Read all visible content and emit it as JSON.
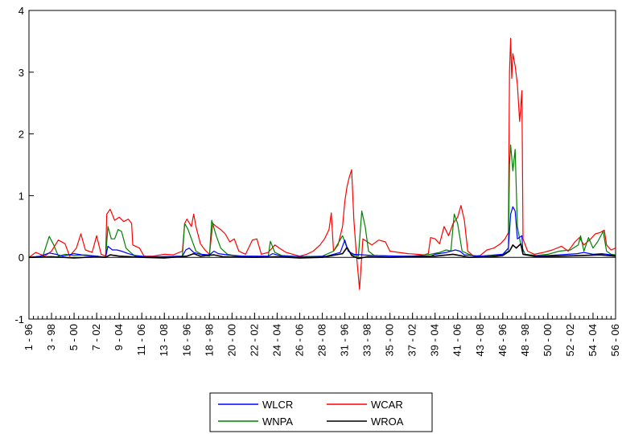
{
  "chart_data": {
    "type": "line",
    "title": "",
    "xlabel": "",
    "ylabel": "",
    "ylim": [
      -1,
      4
    ],
    "yticks": [
      -1,
      0,
      1,
      2,
      3,
      4
    ],
    "grid": false,
    "legend_position": "bottom-center",
    "x_tick_labels": [
      "1 - 96",
      "3 - 98",
      "5 - 00",
      "7 - 02",
      "9 - 04",
      "11 - 06",
      "13 - 08",
      "16 - 96",
      "18 - 98",
      "20 - 00",
      "22 - 02",
      "24 - 04",
      "26 - 06",
      "28 - 08",
      "31 - 96",
      "33 - 98",
      "35 - 00",
      "37 - 02",
      "39 - 04",
      "41 - 06",
      "43 - 08",
      "46 - 96",
      "48 - 98",
      "50 - 00",
      "52 - 02",
      "54 - 04",
      "56 - 06"
    ],
    "x_range": [
      0,
      26
    ],
    "series": [
      {
        "name": "WCAR",
        "color": "#ff0000",
        "points": [
          [
            0,
            0
          ],
          [
            0.3,
            0.08
          ],
          [
            0.7,
            0.02
          ],
          [
            1.0,
            0.1
          ],
          [
            1.3,
            0.28
          ],
          [
            1.6,
            0.22
          ],
          [
            1.8,
            0.02
          ],
          [
            2.1,
            0.15
          ],
          [
            2.3,
            0.38
          ],
          [
            2.5,
            0.12
          ],
          [
            2.8,
            0.08
          ],
          [
            3.0,
            0.35
          ],
          [
            3.2,
            0.05
          ],
          [
            3.4,
            0.02
          ],
          [
            3.45,
            0.7
          ],
          [
            3.6,
            0.78
          ],
          [
            3.8,
            0.6
          ],
          [
            4.0,
            0.65
          ],
          [
            4.2,
            0.58
          ],
          [
            4.4,
            0.62
          ],
          [
            4.55,
            0.55
          ],
          [
            4.6,
            0.2
          ],
          [
            4.9,
            0.15
          ],
          [
            5.1,
            0.02
          ],
          [
            5.5,
            0.02
          ],
          [
            6.0,
            0.05
          ],
          [
            6.4,
            0.04
          ],
          [
            6.8,
            0.1
          ],
          [
            6.9,
            0.55
          ],
          [
            7.0,
            0.62
          ],
          [
            7.2,
            0.5
          ],
          [
            7.3,
            0.7
          ],
          [
            7.4,
            0.5
          ],
          [
            7.6,
            0.22
          ],
          [
            7.8,
            0.12
          ],
          [
            8.0,
            0.05
          ],
          [
            8.15,
            0.55
          ],
          [
            8.3,
            0.5
          ],
          [
            8.5,
            0.45
          ],
          [
            8.7,
            0.38
          ],
          [
            8.9,
            0.25
          ],
          [
            9.1,
            0.3
          ],
          [
            9.3,
            0.1
          ],
          [
            9.6,
            0.05
          ],
          [
            9.9,
            0.28
          ],
          [
            10.1,
            0.3
          ],
          [
            10.3,
            0.05
          ],
          [
            10.6,
            0.08
          ],
          [
            10.9,
            0.2
          ],
          [
            11.1,
            0.15
          ],
          [
            11.4,
            0.08
          ],
          [
            11.7,
            0.05
          ],
          [
            12.0,
            0.02
          ],
          [
            12.3,
            0.05
          ],
          [
            12.6,
            0.1
          ],
          [
            12.9,
            0.2
          ],
          [
            13.1,
            0.3
          ],
          [
            13.3,
            0.45
          ],
          [
            13.4,
            0.72
          ],
          [
            13.5,
            0.1
          ],
          [
            13.7,
            0.2
          ],
          [
            13.9,
            0.5
          ],
          [
            14.0,
            0.9
          ],
          [
            14.1,
            1.15
          ],
          [
            14.2,
            1.3
          ],
          [
            14.3,
            1.42
          ],
          [
            14.4,
            0.6
          ],
          [
            14.5,
            0.1
          ],
          [
            14.65,
            -0.52
          ],
          [
            14.8,
            0.3
          ],
          [
            15.0,
            0.25
          ],
          [
            15.2,
            0.2
          ],
          [
            15.5,
            0.28
          ],
          [
            15.8,
            0.25
          ],
          [
            16.0,
            0.1
          ],
          [
            16.4,
            0.08
          ],
          [
            16.8,
            0.06
          ],
          [
            17.2,
            0.05
          ],
          [
            17.5,
            0.04
          ],
          [
            17.7,
            0.06
          ],
          [
            17.8,
            0.32
          ],
          [
            18.0,
            0.3
          ],
          [
            18.2,
            0.22
          ],
          [
            18.4,
            0.5
          ],
          [
            18.6,
            0.35
          ],
          [
            18.8,
            0.55
          ],
          [
            19.0,
            0.65
          ],
          [
            19.15,
            0.84
          ],
          [
            19.3,
            0.6
          ],
          [
            19.45,
            0.1
          ],
          [
            19.7,
            0.02
          ],
          [
            20.0,
            0.03
          ],
          [
            20.3,
            0.12
          ],
          [
            20.6,
            0.15
          ],
          [
            20.9,
            0.22
          ],
          [
            21.1,
            0.3
          ],
          [
            21.25,
            0.4
          ],
          [
            21.3,
            3.0
          ],
          [
            21.35,
            3.55
          ],
          [
            21.4,
            2.9
          ],
          [
            21.45,
            3.3
          ],
          [
            21.55,
            3.1
          ],
          [
            21.65,
            2.8
          ],
          [
            21.75,
            2.2
          ],
          [
            21.85,
            2.7
          ],
          [
            21.9,
            0.3
          ],
          [
            22.1,
            0.1
          ],
          [
            22.4,
            0.05
          ],
          [
            22.8,
            0.08
          ],
          [
            23.2,
            0.12
          ],
          [
            23.6,
            0.18
          ],
          [
            23.9,
            0.1
          ],
          [
            24.2,
            0.25
          ],
          [
            24.4,
            0.32
          ],
          [
            24.6,
            0.2
          ],
          [
            24.9,
            0.3
          ],
          [
            25.1,
            0.38
          ],
          [
            25.3,
            0.4
          ],
          [
            25.5,
            0.44
          ],
          [
            25.6,
            0.2
          ],
          [
            25.8,
            0.12
          ],
          [
            26.0,
            0.15
          ]
        ]
      },
      {
        "name": "WNPA",
        "color": "#008000",
        "points": [
          [
            0,
            0
          ],
          [
            0.6,
            0.0
          ],
          [
            0.9,
            0.34
          ],
          [
            1.1,
            0.2
          ],
          [
            1.3,
            0.02
          ],
          [
            1.6,
            0.05
          ],
          [
            2.0,
            0.03
          ],
          [
            2.5,
            0.04
          ],
          [
            3.0,
            0.02
          ],
          [
            3.4,
            0.0
          ],
          [
            3.5,
            0.5
          ],
          [
            3.65,
            0.3
          ],
          [
            3.8,
            0.3
          ],
          [
            3.95,
            0.45
          ],
          [
            4.1,
            0.42
          ],
          [
            4.3,
            0.15
          ],
          [
            4.5,
            0.08
          ],
          [
            4.7,
            0.02
          ],
          [
            5.2,
            0.0
          ],
          [
            6.0,
            0.01
          ],
          [
            6.8,
            0.02
          ],
          [
            6.9,
            0.55
          ],
          [
            7.05,
            0.45
          ],
          [
            7.2,
            0.3
          ],
          [
            7.4,
            0.1
          ],
          [
            7.7,
            0.04
          ],
          [
            8.0,
            0.02
          ],
          [
            8.1,
            0.6
          ],
          [
            8.3,
            0.35
          ],
          [
            8.5,
            0.15
          ],
          [
            8.8,
            0.05
          ],
          [
            9.2,
            0.02
          ],
          [
            10.0,
            0.02
          ],
          [
            10.6,
            0.0
          ],
          [
            10.7,
            0.26
          ],
          [
            10.9,
            0.08
          ],
          [
            11.2,
            0.03
          ],
          [
            12.0,
            0.01
          ],
          [
            13.0,
            0.02
          ],
          [
            13.5,
            0.1
          ],
          [
            13.9,
            0.35
          ],
          [
            14.1,
            0.15
          ],
          [
            14.3,
            0.05
          ],
          [
            14.6,
            0.02
          ],
          [
            14.75,
            0.75
          ],
          [
            14.9,
            0.5
          ],
          [
            15.05,
            0.1
          ],
          [
            15.3,
            0.03
          ],
          [
            16.0,
            0.02
          ],
          [
            17.0,
            0.02
          ],
          [
            17.8,
            0.05
          ],
          [
            18.2,
            0.08
          ],
          [
            18.5,
            0.12
          ],
          [
            18.7,
            0.1
          ],
          [
            18.85,
            0.7
          ],
          [
            19.0,
            0.55
          ],
          [
            19.2,
            0.1
          ],
          [
            19.5,
            0.05
          ],
          [
            19.8,
            0.01
          ],
          [
            20.5,
            0.02
          ],
          [
            21.0,
            0.05
          ],
          [
            21.25,
            0.1
          ],
          [
            21.3,
            1.5
          ],
          [
            21.35,
            1.82
          ],
          [
            21.45,
            1.4
          ],
          [
            21.55,
            1.75
          ],
          [
            21.65,
            0.5
          ],
          [
            21.8,
            0.2
          ],
          [
            22.0,
            0.05
          ],
          [
            22.5,
            0.03
          ],
          [
            23.0,
            0.05
          ],
          [
            23.5,
            0.1
          ],
          [
            24.0,
            0.12
          ],
          [
            24.35,
            0.2
          ],
          [
            24.45,
            0.35
          ],
          [
            24.6,
            0.1
          ],
          [
            24.8,
            0.32
          ],
          [
            25.0,
            0.15
          ],
          [
            25.2,
            0.25
          ],
          [
            25.45,
            0.42
          ],
          [
            25.6,
            0.1
          ],
          [
            25.8,
            0.05
          ],
          [
            26.0,
            0.04
          ]
        ]
      },
      {
        "name": "WLCR",
        "color": "#0000ff",
        "points": [
          [
            0,
            0
          ],
          [
            0.5,
            0.02
          ],
          [
            0.9,
            0.07
          ],
          [
            1.2,
            0.05
          ],
          [
            1.5,
            0.02
          ],
          [
            2.0,
            0.06
          ],
          [
            2.5,
            0.03
          ],
          [
            3.0,
            0.02
          ],
          [
            3.4,
            0.0
          ],
          [
            3.5,
            0.18
          ],
          [
            3.7,
            0.12
          ],
          [
            3.9,
            0.12
          ],
          [
            4.1,
            0.1
          ],
          [
            4.4,
            0.06
          ],
          [
            4.7,
            0.03
          ],
          [
            5.2,
            0.01
          ],
          [
            6.0,
            0.01
          ],
          [
            6.8,
            0.02
          ],
          [
            6.95,
            0.12
          ],
          [
            7.1,
            0.15
          ],
          [
            7.3,
            0.08
          ],
          [
            7.6,
            0.05
          ],
          [
            8.0,
            0.04
          ],
          [
            8.2,
            0.1
          ],
          [
            8.4,
            0.06
          ],
          [
            8.8,
            0.04
          ],
          [
            9.5,
            0.02
          ],
          [
            10.6,
            0.02
          ],
          [
            10.8,
            0.06
          ],
          [
            11.2,
            0.02
          ],
          [
            12.5,
            0.01
          ],
          [
            13.2,
            0.02
          ],
          [
            13.8,
            0.08
          ],
          [
            14.0,
            0.28
          ],
          [
            14.15,
            0.1
          ],
          [
            14.4,
            0.05
          ],
          [
            14.8,
            0.04
          ],
          [
            15.2,
            0.03
          ],
          [
            16.5,
            0.02
          ],
          [
            17.8,
            0.02
          ],
          [
            18.0,
            0.05
          ],
          [
            18.5,
            0.08
          ],
          [
            18.9,
            0.12
          ],
          [
            19.1,
            0.1
          ],
          [
            19.3,
            0.04
          ],
          [
            20.0,
            0.02
          ],
          [
            21.0,
            0.05
          ],
          [
            21.25,
            0.15
          ],
          [
            21.35,
            0.7
          ],
          [
            21.45,
            0.82
          ],
          [
            21.55,
            0.75
          ],
          [
            21.65,
            0.3
          ],
          [
            21.85,
            0.35
          ],
          [
            21.9,
            0.05
          ],
          [
            22.5,
            0.02
          ],
          [
            23.5,
            0.04
          ],
          [
            24.3,
            0.06
          ],
          [
            24.6,
            0.08
          ],
          [
            25.0,
            0.05
          ],
          [
            25.4,
            0.06
          ],
          [
            25.8,
            0.04
          ],
          [
            26.0,
            0.03
          ]
        ]
      },
      {
        "name": "WROA",
        "color": "#000000",
        "points": [
          [
            0,
            0
          ],
          [
            1.0,
            0.01
          ],
          [
            2.0,
            -0.01
          ],
          [
            3.0,
            0.01
          ],
          [
            3.4,
            0.0
          ],
          [
            3.6,
            0.04
          ],
          [
            4.0,
            0.02
          ],
          [
            5.0,
            0.0
          ],
          [
            6.0,
            -0.01
          ],
          [
            7.0,
            0.02
          ],
          [
            7.3,
            0.06
          ],
          [
            7.6,
            0.02
          ],
          [
            8.2,
            0.04
          ],
          [
            8.6,
            0.01
          ],
          [
            10.0,
            0.0
          ],
          [
            11.0,
            0.01
          ],
          [
            12.0,
            -0.01
          ],
          [
            13.0,
            0.0
          ],
          [
            13.9,
            0.06
          ],
          [
            14.1,
            0.16
          ],
          [
            14.3,
            0.03
          ],
          [
            14.6,
            -0.02
          ],
          [
            15.0,
            0.01
          ],
          [
            16.0,
            0.0
          ],
          [
            17.0,
            0.01
          ],
          [
            18.0,
            0.02
          ],
          [
            18.8,
            0.05
          ],
          [
            19.1,
            0.03
          ],
          [
            19.5,
            0.0
          ],
          [
            20.5,
            0.01
          ],
          [
            21.0,
            0.03
          ],
          [
            21.3,
            0.1
          ],
          [
            21.45,
            0.2
          ],
          [
            21.6,
            0.15
          ],
          [
            21.8,
            0.22
          ],
          [
            21.9,
            0.05
          ],
          [
            22.5,
            0.01
          ],
          [
            23.5,
            0.02
          ],
          [
            24.5,
            0.03
          ],
          [
            25.3,
            0.04
          ],
          [
            26.0,
            0.02
          ]
        ]
      }
    ]
  }
}
